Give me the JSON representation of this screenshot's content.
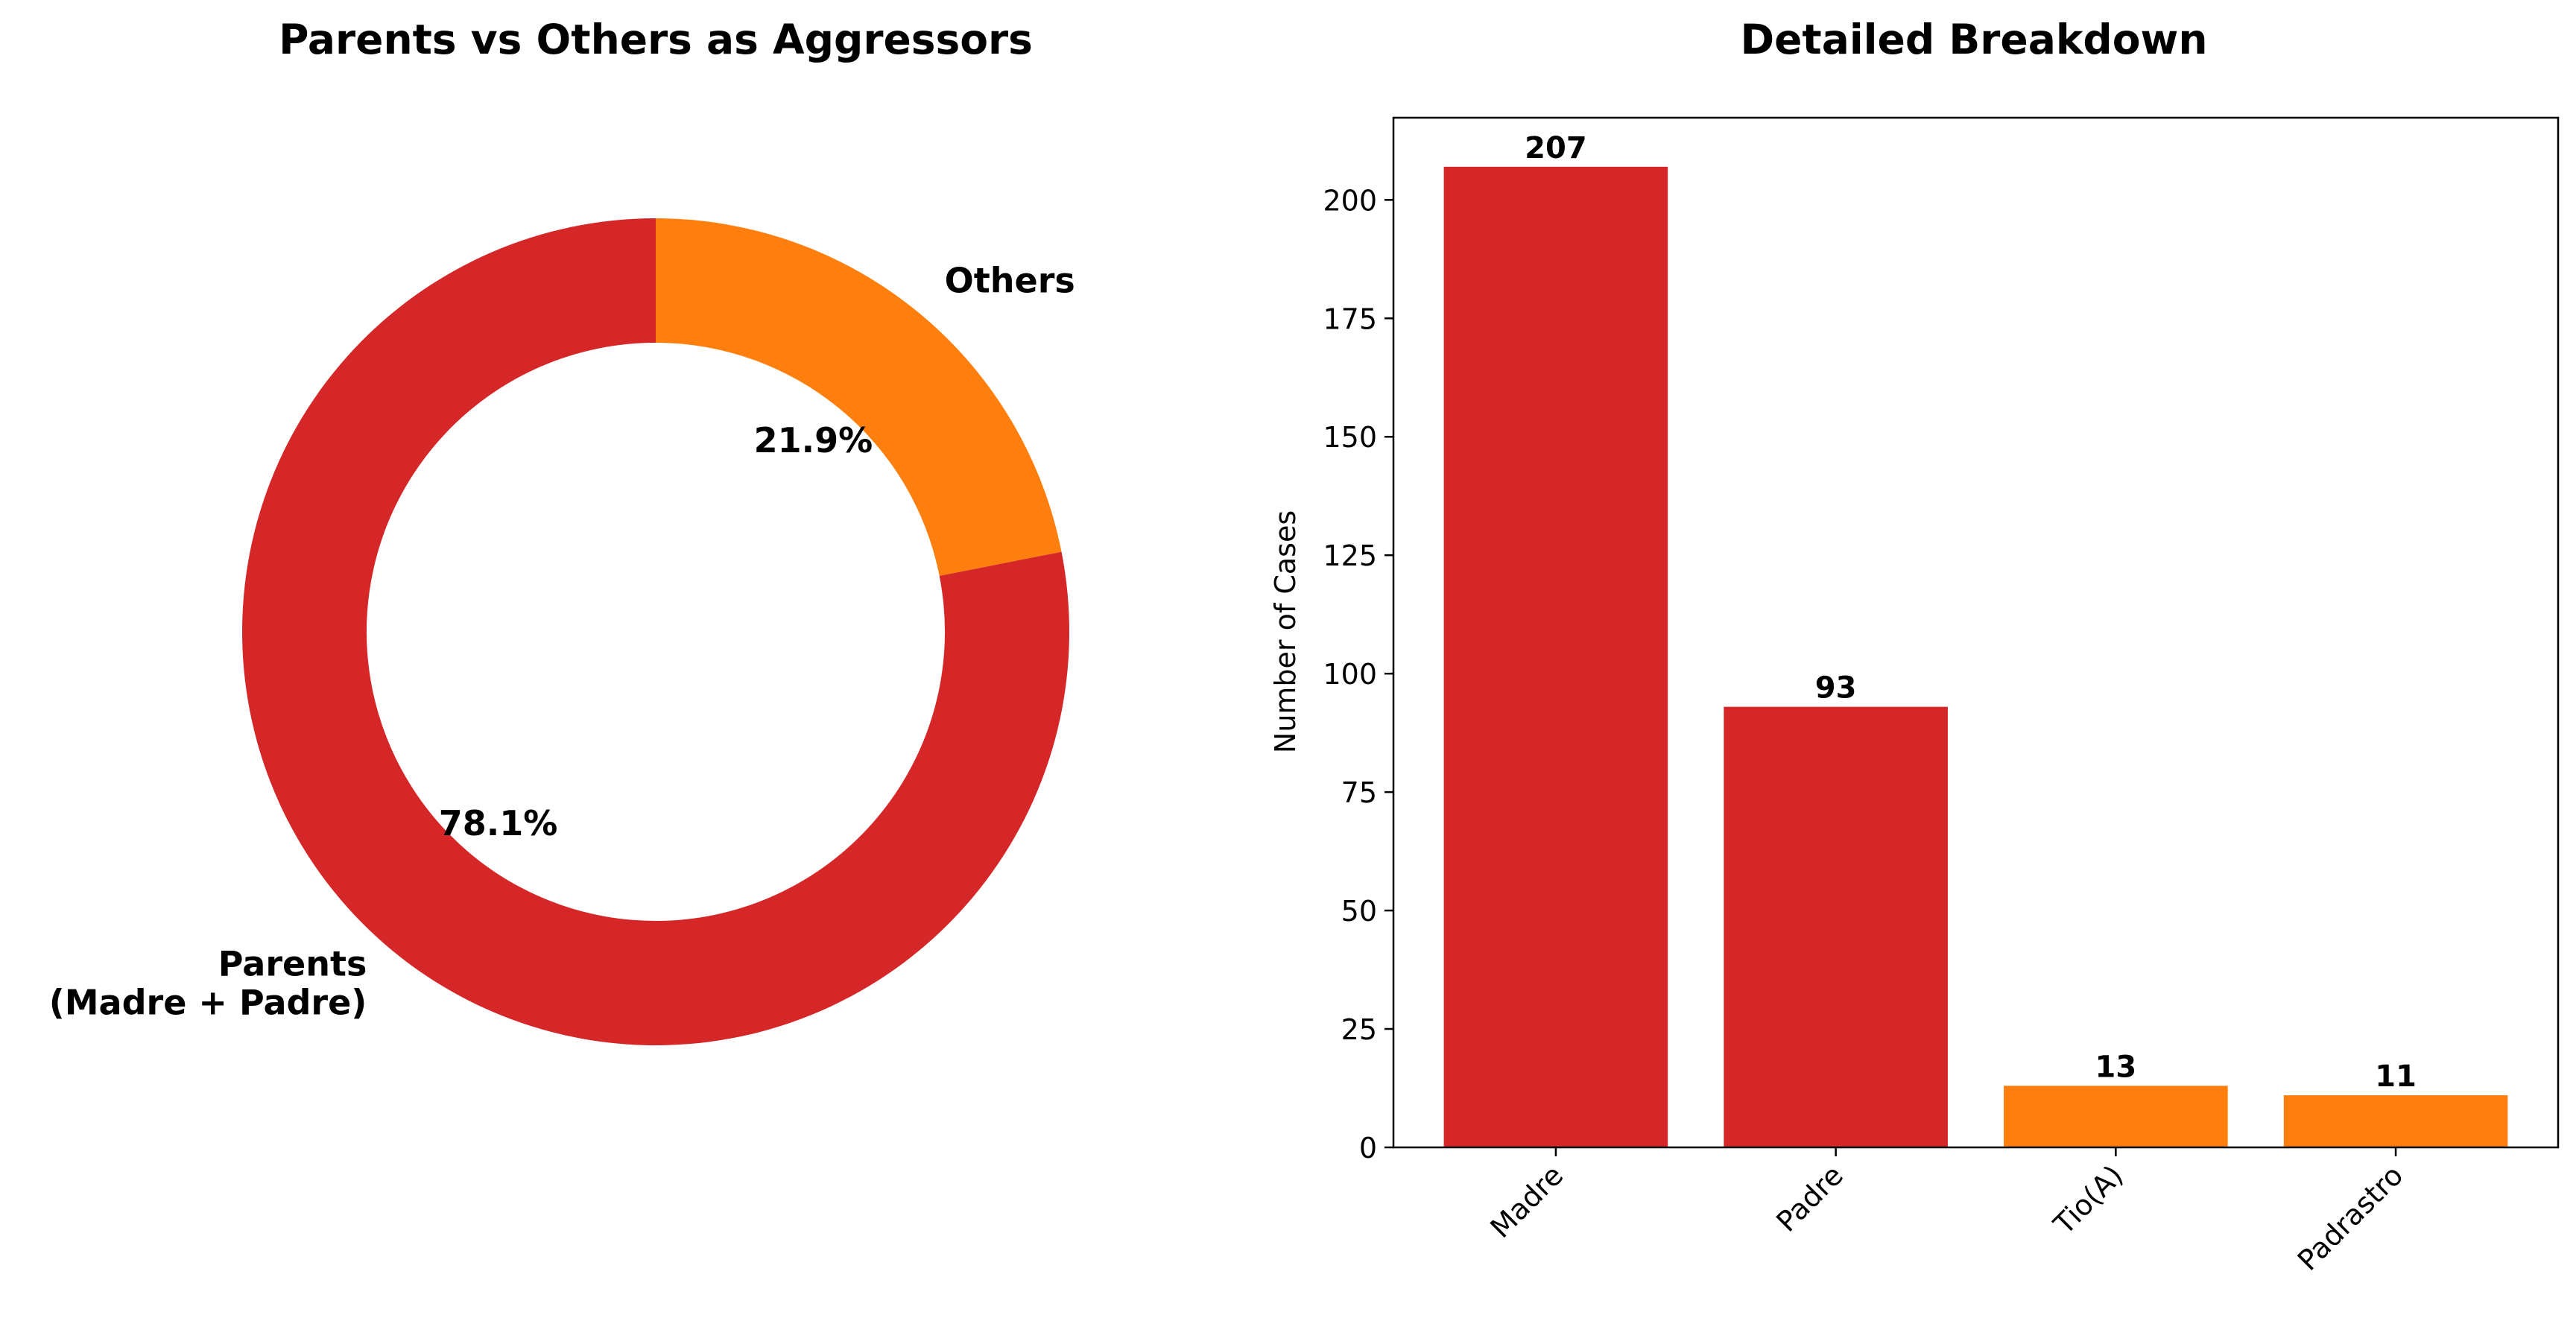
{
  "chart_data": [
    {
      "type": "pie",
      "style": "donut",
      "title": "Parents vs Others as Aggressors",
      "slices": [
        {
          "label": "Parents\n(Madre + Padre)",
          "value": 78.1,
          "pct_label": "78.1%",
          "color": "#d62728"
        },
        {
          "label": "Others",
          "value": 21.9,
          "pct_label": "21.9%",
          "color": "#ff7f0e"
        }
      ]
    },
    {
      "type": "bar",
      "title": "Detailed Breakdown",
      "xlabel": "",
      "ylabel": "Number of Cases",
      "categories": [
        "Madre",
        "Padre",
        "Tio(A)",
        "Padrastro"
      ],
      "values": [
        207,
        93,
        13,
        11
      ],
      "value_labels": [
        "207",
        "93",
        "13",
        "11"
      ],
      "colors": [
        "#d62728",
        "#d62728",
        "#ff7f0e",
        "#ff7f0e"
      ],
      "ylim": [
        0,
        217.35
      ],
      "yticks": [
        0,
        25,
        50,
        75,
        100,
        125,
        150,
        175,
        200
      ],
      "grid": false,
      "legend": "none"
    }
  ]
}
